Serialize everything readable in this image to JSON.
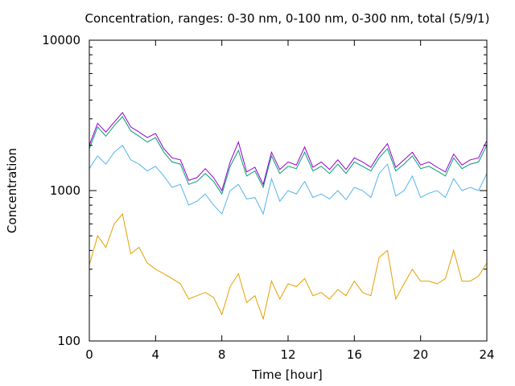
{
  "chart_data": {
    "type": "line",
    "title": "Concentration, ranges: 0-30 nm, 0-100 nm, 0-300 nm, total (5/9/1)",
    "xlabel": "Time [hour]",
    "ylabel": "Concentration",
    "xlim": [
      0,
      24
    ],
    "ylim": [
      100,
      10000
    ],
    "yscale": "log",
    "grid": false,
    "legend": "none",
    "x_ticks": [
      0,
      4,
      8,
      12,
      16,
      20,
      24
    ],
    "x_tick_labels": [
      "0",
      "4",
      "8",
      "12",
      "16",
      "20",
      "24"
    ],
    "y_ticks": [
      100,
      1000,
      10000
    ],
    "y_tick_labels": [
      "100",
      "1000",
      "10000"
    ],
    "x": [
      0,
      0.5,
      1,
      1.5,
      2,
      2.5,
      3,
      3.5,
      4,
      4.5,
      5,
      5.5,
      6,
      6.5,
      7,
      7.5,
      8,
      8.5,
      9,
      9.5,
      10,
      10.5,
      11,
      11.5,
      12,
      12.5,
      13,
      13.5,
      14,
      14.5,
      15,
      15.5,
      16,
      16.5,
      17,
      17.5,
      18,
      18.5,
      19,
      19.5,
      20,
      20.5,
      21,
      21.5,
      22,
      22.5,
      23,
      23.5,
      24
    ],
    "series": [
      {
        "color": "#e69f00",
        "values": [
          320,
          500,
          420,
          600,
          700,
          380,
          420,
          330,
          300,
          280,
          260,
          240,
          190,
          200,
          210,
          195,
          150,
          230,
          280,
          180,
          200,
          140,
          250,
          190,
          240,
          230,
          260,
          200,
          210,
          190,
          220,
          200,
          250,
          210,
          200,
          360,
          400,
          190,
          240,
          300,
          250,
          250,
          240,
          260,
          400,
          250,
          250,
          270,
          330
        ]
      },
      {
        "color": "#56b4e9",
        "values": [
          1400,
          1700,
          1500,
          1800,
          2000,
          1600,
          1500,
          1350,
          1450,
          1250,
          1050,
          1100,
          800,
          850,
          950,
          800,
          700,
          1000,
          1100,
          880,
          900,
          700,
          1200,
          850,
          1000,
          950,
          1150,
          900,
          950,
          880,
          1000,
          870,
          1050,
          1000,
          900,
          1300,
          1500,
          920,
          1000,
          1250,
          900,
          960,
          1000,
          900,
          1200,
          1000,
          1050,
          1000,
          1300
        ]
      },
      {
        "color": "#009e73",
        "values": [
          1900,
          2650,
          2300,
          2700,
          3100,
          2500,
          2300,
          2100,
          2250,
          1800,
          1550,
          1500,
          1100,
          1150,
          1300,
          1150,
          950,
          1450,
          1850,
          1250,
          1350,
          1050,
          1700,
          1300,
          1450,
          1400,
          1800,
          1350,
          1450,
          1300,
          1500,
          1300,
          1550,
          1450,
          1350,
          1650,
          1900,
          1350,
          1500,
          1700,
          1400,
          1450,
          1350,
          1250,
          1650,
          1400,
          1500,
          1550,
          2000
        ]
      },
      {
        "color": "#9400d3",
        "values": [
          2000,
          2800,
          2450,
          2850,
          3300,
          2650,
          2450,
          2250,
          2400,
          1900,
          1650,
          1600,
          1170,
          1220,
          1400,
          1220,
          1000,
          1550,
          2100,
          1330,
          1430,
          1100,
          1800,
          1380,
          1550,
          1480,
          1950,
          1430,
          1550,
          1380,
          1600,
          1380,
          1650,
          1550,
          1430,
          1750,
          2050,
          1430,
          1600,
          1800,
          1480,
          1550,
          1430,
          1330,
          1750,
          1480,
          1600,
          1650,
          2150
        ]
      }
    ]
  }
}
